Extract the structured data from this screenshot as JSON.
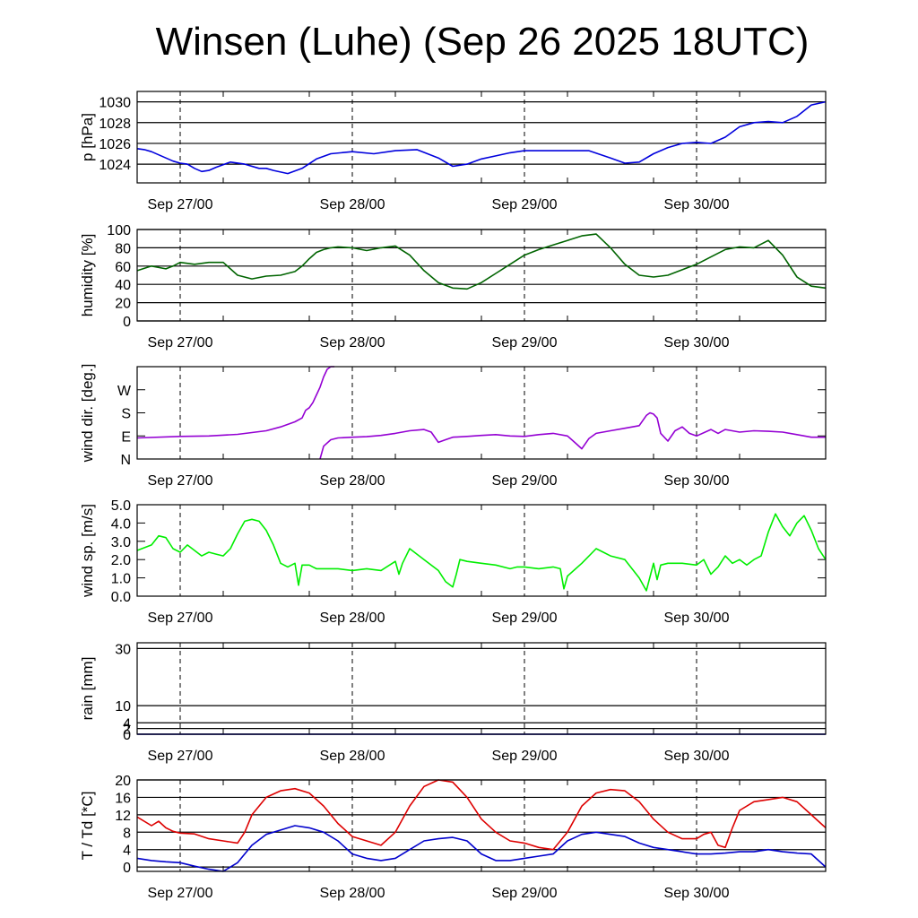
{
  "title": "Winsen (Luhe) (Sep 26 2025 18UTC)",
  "colors": {
    "pressure": "#0000dd",
    "humidity": "#006400",
    "wind_dir": "#9400d3",
    "wind_speed": "#00ee00",
    "temperature": "#dd0000",
    "dewpoint": "#0000cc",
    "grid": "#000000"
  },
  "chart_data": [
    {
      "type": "line",
      "name": "pressure",
      "ylabel": "p [hPa]",
      "ylim": [
        1022.2,
        1031.0
      ],
      "yticks": [
        1024,
        1026,
        1028,
        1030
      ],
      "ytick_labels": [
        "1024",
        "1026",
        "1028",
        "1030"
      ],
      "grid": true,
      "xlim": [
        -6,
        90
      ],
      "xtick_labels": [
        "Sep 27/00",
        "Sep 28/00",
        "Sep 29/00",
        "Sep 30/00"
      ],
      "series": [
        {
          "color_key": "pressure",
          "x": [
            -6,
            -5,
            -4,
            -3,
            -2,
            -1,
            0,
            1,
            2,
            3,
            4,
            5,
            7,
            9,
            11,
            12,
            13,
            15,
            17,
            19,
            21,
            24,
            27,
            30,
            33,
            36,
            38,
            40,
            42,
            44,
            46,
            48,
            51,
            54,
            57,
            60,
            62,
            64,
            66,
            68,
            70,
            72,
            74,
            76,
            78,
            80,
            82,
            84,
            86,
            88,
            90
          ],
          "y": [
            1025.5,
            1025.4,
            1025.2,
            1024.9,
            1024.6,
            1024.3,
            1024.1,
            1024.0,
            1023.6,
            1023.3,
            1023.4,
            1023.7,
            1024.2,
            1024.0,
            1023.6,
            1023.6,
            1023.4,
            1023.1,
            1023.6,
            1024.5,
            1025.0,
            1025.2,
            1025.0,
            1025.3,
            1025.4,
            1024.6,
            1023.8,
            1024.0,
            1024.5,
            1024.8,
            1025.1,
            1025.3,
            1025.3,
            1025.3,
            1025.3,
            1024.6,
            1024.1,
            1024.2,
            1025.0,
            1025.6,
            1026.0,
            1026.1,
            1026.0,
            1026.6,
            1027.6,
            1028.0,
            1028.1,
            1028.0,
            1028.6,
            1029.7,
            1030.0
          ]
        }
      ]
    },
    {
      "type": "line",
      "name": "humidity",
      "ylabel": "humidity [%]",
      "ylim": [
        0,
        100
      ],
      "yticks": [
        0,
        20,
        40,
        60,
        80,
        100
      ],
      "ytick_labels": [
        "0",
        "20",
        "40",
        "60",
        "80",
        "100"
      ],
      "grid": true,
      "xlim": [
        -6,
        90
      ],
      "xtick_labels": [
        "Sep 27/00",
        "Sep 28/00",
        "Sep 29/00",
        "Sep 30/00"
      ],
      "series": [
        {
          "color_key": "humidity",
          "x": [
            -6,
            -4,
            -2,
            -1,
            0,
            2,
            4,
            6,
            8,
            10,
            12,
            14,
            16,
            17,
            18,
            19,
            20,
            21,
            22,
            24,
            26,
            28,
            30,
            32,
            34,
            36,
            38,
            40,
            42,
            44,
            46,
            48,
            50,
            52,
            54,
            56,
            58,
            60,
            62,
            64,
            66,
            68,
            70,
            72,
            74,
            76,
            78,
            80,
            82,
            84,
            86,
            88,
            90
          ],
          "y": [
            55,
            60,
            57,
            60,
            64,
            62,
            64,
            64,
            50,
            46,
            49,
            50,
            54,
            60,
            68,
            75,
            78,
            80,
            81,
            80,
            77,
            80,
            82,
            72,
            55,
            42,
            36,
            35,
            42,
            52,
            62,
            72,
            78,
            83,
            88,
            93,
            95,
            80,
            62,
            50,
            48,
            50,
            56,
            62,
            70,
            78,
            81,
            80,
            88,
            72,
            48,
            38,
            36
          ]
        }
      ]
    },
    {
      "type": "line",
      "name": "wind direction",
      "ylabel": "wind dir. [deg.]",
      "ylim": [
        0,
        360
      ],
      "yticks": [
        0,
        90,
        180,
        270
      ],
      "ytick_labels": [
        "N",
        "E",
        "S",
        "W"
      ],
      "grid": false,
      "xlim": [
        -6,
        90
      ],
      "xtick_labels": [
        "Sep 27/00",
        "Sep 28/00",
        "Sep 29/00",
        "Sep 30/00"
      ],
      "series": [
        {
          "color_key": "wind_dir",
          "x": [
            -6,
            0,
            4,
            8,
            12,
            14,
            16,
            17,
            17.5,
            18,
            18.5,
            19,
            19.5,
            20,
            20.5,
            21,
            21.5
          ],
          "y": [
            82,
            88,
            90,
            96,
            110,
            125,
            145,
            160,
            190,
            200,
            220,
            250,
            280,
            320,
            350,
            360,
            360
          ]
        },
        {
          "color_key": "wind_dir",
          "x": [
            19.5,
            20,
            21,
            22,
            24,
            26,
            28,
            30,
            32,
            34,
            35,
            36,
            37,
            38,
            40,
            42,
            44,
            46,
            48,
            50,
            52,
            54,
            55,
            56,
            57,
            58,
            60,
            62,
            64,
            65,
            65.5,
            66,
            66.5,
            67,
            68,
            69,
            70,
            71,
            72,
            74,
            75,
            76,
            78,
            80,
            82,
            84,
            86,
            88,
            90
          ],
          "y": [
            0,
            50,
            75,
            82,
            85,
            87,
            92,
            100,
            110,
            115,
            105,
            65,
            75,
            85,
            88,
            92,
            95,
            90,
            88,
            95,
            100,
            90,
            65,
            40,
            80,
            100,
            110,
            120,
            130,
            170,
            180,
            175,
            160,
            100,
            70,
            110,
            125,
            100,
            90,
            115,
            100,
            115,
            105,
            110,
            108,
            105,
            95,
            85,
            85
          ]
        }
      ]
    },
    {
      "type": "line",
      "name": "wind speed",
      "ylabel": "wind sp. [m/s]",
      "ylim": [
        0,
        5
      ],
      "yticks": [
        0,
        1,
        2,
        3,
        4,
        5
      ],
      "ytick_labels": [
        "0.0",
        "1.0",
        "2.0",
        "3.0",
        "4.0",
        "5.0"
      ],
      "grid": false,
      "xlim": [
        -6,
        90
      ],
      "xtick_labels": [
        "Sep 27/00",
        "Sep 28/00",
        "Sep 29/00",
        "Sep 30/00"
      ],
      "series": [
        {
          "color_key": "wind_speed",
          "x": [
            -6,
            -4,
            -3,
            -2,
            -1,
            0,
            1,
            2,
            3,
            4,
            5,
            6,
            7,
            8,
            9,
            10,
            11,
            12,
            13,
            14,
            15,
            16,
            16.5,
            17,
            18,
            18.5,
            19,
            20,
            22,
            24,
            26,
            28,
            30,
            30.5,
            31,
            32,
            34,
            36,
            37,
            38,
            38.5,
            39,
            40,
            42,
            44,
            46,
            47,
            48,
            50,
            52,
            53,
            53.5,
            54,
            56,
            58,
            59,
            60,
            62,
            64,
            65,
            66,
            66.5,
            67,
            68,
            70,
            72,
            73,
            74,
            75,
            76,
            77,
            78,
            79,
            80,
            81,
            82,
            83,
            84,
            85,
            86,
            87,
            88,
            89,
            90
          ],
          "y": [
            2.5,
            2.8,
            3.3,
            3.2,
            2.6,
            2.4,
            2.8,
            2.5,
            2.2,
            2.4,
            2.3,
            2.2,
            2.6,
            3.4,
            4.1,
            4.2,
            4.1,
            3.6,
            2.8,
            1.8,
            1.6,
            1.8,
            0.6,
            1.7,
            1.7,
            1.6,
            1.5,
            1.5,
            1.5,
            1.4,
            1.5,
            1.4,
            1.9,
            1.2,
            1.8,
            2.6,
            2.0,
            1.4,
            0.8,
            0.5,
            1.2,
            2.0,
            1.9,
            1.8,
            1.7,
            1.5,
            1.6,
            1.6,
            1.5,
            1.6,
            1.5,
            0.4,
            1.1,
            1.8,
            2.6,
            2.4,
            2.2,
            2.0,
            1.0,
            0.3,
            1.8,
            0.9,
            1.7,
            1.8,
            1.8,
            1.7,
            2.0,
            1.2,
            1.6,
            2.2,
            1.8,
            2.0,
            1.7,
            2.0,
            2.2,
            3.5,
            4.5,
            3.8,
            3.3,
            4.0,
            4.4,
            3.6,
            2.6,
            2.0
          ]
        }
      ]
    },
    {
      "type": "line",
      "name": "rain",
      "ylabel": "rain [mm]",
      "ylim": [
        0,
        32
      ],
      "yticks": [
        0,
        2,
        4,
        10,
        30
      ],
      "ytick_labels": [
        "0",
        "2",
        "4",
        "10",
        "30"
      ],
      "grid": true,
      "xlim": [
        -6,
        90
      ],
      "xtick_labels": [
        "Sep 27/00",
        "Sep 28/00",
        "Sep 29/00",
        "Sep 30/00"
      ],
      "series": [
        {
          "color_key": "pressure",
          "x": [
            -6,
            90
          ],
          "y": [
            0,
            0
          ]
        }
      ]
    },
    {
      "type": "line",
      "name": "temperature / dewpoint",
      "ylabel": "T / Td [*C]",
      "ylim": [
        -1,
        20
      ],
      "yticks": [
        0,
        4,
        8,
        12,
        16,
        20
      ],
      "ytick_labels": [
        "0",
        "4",
        "8",
        "12",
        "16",
        "20"
      ],
      "grid": true,
      "xlim": [
        -6,
        90
      ],
      "xtick_labels": [
        "Sep 27/00",
        "Sep 28/00",
        "Sep 29/00",
        "Sep 30/00"
      ],
      "series": [
        {
          "color_key": "temperature",
          "x": [
            -6,
            -4,
            -3,
            -2,
            -1,
            0,
            2,
            4,
            6,
            8,
            9,
            10,
            12,
            14,
            16,
            18,
            20,
            22,
            24,
            26,
            28,
            30,
            32,
            34,
            36,
            38,
            40,
            42,
            44,
            46,
            48,
            50,
            52,
            54,
            56,
            58,
            60,
            62,
            64,
            66,
            68,
            70,
            72,
            73,
            74,
            75,
            76,
            77,
            78,
            80,
            82,
            84,
            86,
            88,
            90
          ],
          "y": [
            11.5,
            9.5,
            10.5,
            9.0,
            8.2,
            7.8,
            7.6,
            6.5,
            6.0,
            5.5,
            8.0,
            12.0,
            16.0,
            17.5,
            18.0,
            17.0,
            14.0,
            10.0,
            7.0,
            6.0,
            5.0,
            8.0,
            14.0,
            18.5,
            20.0,
            19.5,
            16.0,
            11.0,
            8.0,
            6.0,
            5.5,
            4.5,
            4.0,
            8.0,
            14.0,
            17.0,
            17.8,
            17.5,
            15.0,
            11.0,
            8.0,
            6.5,
            6.5,
            7.5,
            8.0,
            5.0,
            4.5,
            9.0,
            13.0,
            15.0,
            15.5,
            16.0,
            15.0,
            12.0,
            9.0
          ]
        },
        {
          "color_key": "dewpoint",
          "x": [
            -6,
            -4,
            -2,
            0,
            2,
            4,
            6,
            8,
            10,
            12,
            14,
            16,
            18,
            20,
            22,
            24,
            26,
            28,
            30,
            32,
            34,
            36,
            38,
            40,
            42,
            44,
            46,
            48,
            50,
            52,
            54,
            56,
            58,
            60,
            62,
            64,
            66,
            68,
            70,
            72,
            74,
            76,
            78,
            80,
            82,
            84,
            86,
            88,
            90
          ],
          "y": [
            2.0,
            1.5,
            1.2,
            1.0,
            0.2,
            -0.5,
            -1.0,
            1.0,
            5.0,
            7.5,
            8.5,
            9.5,
            9.0,
            8.0,
            6.0,
            3.0,
            2.0,
            1.5,
            2.0,
            4.0,
            6.0,
            6.5,
            6.8,
            6.0,
            3.0,
            1.5,
            1.5,
            2.0,
            2.5,
            3.0,
            6.0,
            7.5,
            8.0,
            7.5,
            7.0,
            5.5,
            4.5,
            4.0,
            3.5,
            3.0,
            3.0,
            3.2,
            3.5,
            3.5,
            4.0,
            3.5,
            3.2,
            3.0,
            0.0
          ]
        }
      ]
    }
  ]
}
